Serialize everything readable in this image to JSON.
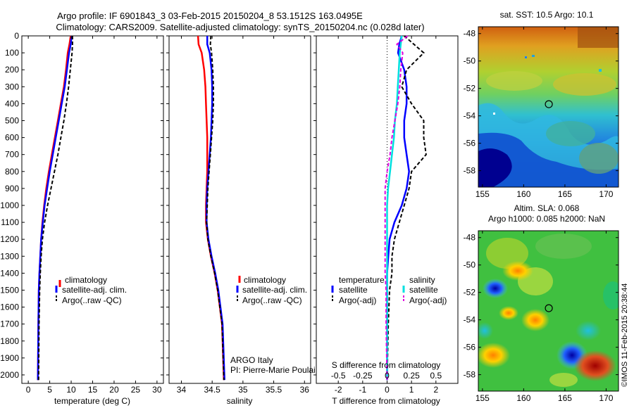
{
  "header": {
    "title_line1": "Argo profile: IF 6901843_3 03-Feb-2015 20150204_8 53.1512S 163.0495E",
    "title_line2": "Climatology: CARS2009. Satellite-adjusted climatology: synTS_20150204.nc (0.028d later)"
  },
  "credits": {
    "agency": "ARGO Italy",
    "pi": "PI: Pierre-Marie Poulain",
    "stamp": "©IMOS 11-Feb-2015 20:38:44"
  },
  "colors": {
    "climatology": "#ff0000",
    "satellite": "#0000ff",
    "argo": "#000000",
    "sal_satellite": "#00e0e0",
    "sal_argo": "#e000e0"
  },
  "chart_data": [
    {
      "type": "line",
      "id": "temperature",
      "xlabel": "temperature (deg C)",
      "ylabel": "",
      "xlim": [
        -1.5,
        31.5
      ],
      "ylim": [
        2050,
        0
      ],
      "xticks": [
        0,
        5,
        10,
        15,
        20,
        25,
        30
      ],
      "yticks": [
        0,
        100,
        200,
        300,
        400,
        500,
        600,
        700,
        800,
        900,
        1000,
        1100,
        1200,
        1300,
        1400,
        1500,
        1600,
        1700,
        1800,
        1900,
        2000
      ],
      "legend": [
        "climatology",
        "satellite-adj. clim.",
        "Argo(..raw -QC)"
      ],
      "series": [
        {
          "name": "climatology",
          "x": [
            9.9,
            9.6,
            9.2,
            8.8,
            8.3,
            7.6,
            6.9,
            6.2,
            5.5,
            4.8,
            4.2,
            3.7,
            3.3,
            3.0,
            2.8,
            2.6,
            2.45,
            2.35,
            2.25
          ],
          "y": [
            0,
            50,
            100,
            200,
            300,
            400,
            500,
            600,
            700,
            800,
            900,
            1000,
            1100,
            1200,
            1300,
            1400,
            1500,
            1700,
            2030
          ]
        },
        {
          "name": "satellite-adj. clim.",
          "x": [
            10.1,
            9.9,
            9.5,
            9.0,
            8.5,
            7.8,
            7.1,
            6.4,
            5.7,
            5.0,
            4.4,
            3.8,
            3.4,
            3.0,
            2.8,
            2.6,
            2.45,
            2.35,
            2.25
          ],
          "y": [
            0,
            50,
            100,
            200,
            300,
            400,
            500,
            600,
            700,
            800,
            900,
            1000,
            1100,
            1200,
            1300,
            1400,
            1500,
            1700,
            2030
          ]
        },
        {
          "name": "Argo(..raw -QC)",
          "x": [
            10.3,
            10.3,
            10.2,
            9.8,
            9.4,
            8.9,
            8.3,
            7.6,
            6.9,
            6.1,
            5.3,
            4.5,
            3.8,
            3.3,
            3.0,
            2.8,
            2.65,
            2.5,
            2.4
          ],
          "y": [
            0,
            50,
            100,
            200,
            300,
            400,
            500,
            600,
            700,
            800,
            900,
            1000,
            1100,
            1200,
            1300,
            1400,
            1500,
            1700,
            2030
          ]
        }
      ]
    },
    {
      "type": "line",
      "id": "salinity",
      "xlabel": "salinity",
      "ylabel": "",
      "xlim": [
        33.8,
        36.1
      ],
      "ylim": [
        2050,
        0
      ],
      "xticks": [
        34,
        34.5,
        35,
        35.5,
        36
      ],
      "legend": [
        "climatology",
        "satellite-adj. clim.",
        "Argo(..raw -QC)"
      ],
      "series": [
        {
          "name": "climatology",
          "x": [
            34.27,
            34.28,
            34.33,
            34.37,
            34.39,
            34.4,
            34.41,
            34.42,
            34.42,
            34.42,
            34.41,
            34.4,
            34.4,
            34.43,
            34.48,
            34.54,
            34.59,
            34.66,
            34.69
          ],
          "y": [
            0,
            50,
            100,
            200,
            300,
            400,
            500,
            600,
            700,
            800,
            900,
            1000,
            1100,
            1200,
            1300,
            1400,
            1500,
            1700,
            2030
          ]
        },
        {
          "name": "satellite-adj. clim.",
          "x": [
            34.42,
            34.42,
            34.46,
            34.49,
            34.5,
            34.5,
            34.49,
            34.48,
            34.46,
            34.44,
            34.42,
            34.41,
            34.41,
            34.44,
            34.49,
            34.55,
            34.6,
            34.67,
            34.7
          ],
          "y": [
            0,
            50,
            100,
            200,
            300,
            400,
            500,
            600,
            700,
            800,
            900,
            1000,
            1100,
            1200,
            1300,
            1400,
            1500,
            1700,
            2030
          ]
        },
        {
          "name": "Argo(..raw -QC)",
          "x": [
            34.48,
            34.47,
            34.49,
            34.51,
            34.52,
            34.52,
            34.51,
            34.49,
            34.47,
            34.45,
            34.43,
            34.42,
            34.41,
            34.43,
            34.48,
            34.54,
            34.59,
            34.66,
            34.69
          ],
          "y": [
            0,
            50,
            100,
            200,
            300,
            400,
            500,
            600,
            700,
            800,
            900,
            1000,
            1100,
            1200,
            1300,
            1400,
            1500,
            1700,
            2030
          ]
        }
      ]
    },
    {
      "type": "line",
      "id": "differences",
      "xlabel": "T difference from climatology",
      "xlabel_top": "S difference from climatology",
      "xlim": [
        -2.9,
        2.9
      ],
      "ylim": [
        2050,
        0
      ],
      "xticks_bottom": [
        -2,
        -1,
        0,
        1,
        2
      ],
      "xticks_top": [
        -0.5,
        -0.25,
        0,
        0.25,
        0.5
      ],
      "xticks_top_labels": [
        "-0.5",
        "-0.25",
        "0",
        "0.25",
        "0.5"
      ],
      "legend_left_title": "temperature",
      "legend_right_title": "salinity",
      "legend": [
        "satellite",
        "Argo(-adj)",
        "satellite",
        "Argo(-adj)"
      ],
      "series": [
        {
          "name": "satellite",
          "x": [
            0.6,
            0.5,
            0.45,
            0.7,
            0.8,
            0.8,
            0.7,
            0.7,
            0.8,
            0.9,
            0.8,
            0.6,
            0.3,
            0.1,
            0.05,
            0.0,
            0.0,
            0.0,
            0.0
          ],
          "y": [
            0,
            50,
            100,
            200,
            300,
            400,
            500,
            600,
            700,
            800,
            900,
            1000,
            1100,
            1200,
            1300,
            1400,
            1500,
            1700,
            2030
          ]
        },
        {
          "name": "Argo(-adj)",
          "x": [
            0.7,
            1.1,
            1.5,
            0.8,
            0.6,
            1.0,
            1.5,
            1.5,
            1.6,
            1.0,
            0.9,
            0.7,
            0.5,
            0.3,
            0.2,
            0.2,
            0.1,
            0.05,
            0.0
          ],
          "y": [
            0,
            50,
            100,
            200,
            300,
            400,
            500,
            600,
            700,
            800,
            900,
            1000,
            1100,
            1200,
            1300,
            1400,
            1500,
            1700,
            2030
          ]
        },
        {
          "name": "satellite",
          "x": [
            0.15,
            0.14,
            0.13,
            0.12,
            0.11,
            0.1,
            0.08,
            0.07,
            0.05,
            0.03,
            0.01,
            0.0,
            0.0,
            0.0,
            0.0,
            0.0,
            0.0,
            0.0,
            0.0
          ],
          "y": [
            0,
            50,
            100,
            200,
            300,
            400,
            500,
            600,
            700,
            800,
            900,
            1000,
            1100,
            1200,
            1300,
            1400,
            1500,
            1700,
            2030
          ]
        },
        {
          "name": "Argo(-adj)",
          "x": [
            0.21,
            0.1,
            0.16,
            0.14,
            0.13,
            0.11,
            0.08,
            0.05,
            0.03,
            0.0,
            -0.02,
            -0.02,
            -0.02,
            -0.02,
            -0.02,
            -0.02,
            -0.01,
            -0.01,
            0.0
          ],
          "y": [
            0,
            50,
            100,
            200,
            300,
            400,
            500,
            600,
            700,
            800,
            900,
            1000,
            1100,
            1200,
            1300,
            1400,
            1500,
            1700,
            2030
          ]
        }
      ]
    },
    {
      "type": "heatmap",
      "id": "sst-map",
      "title": "sat. SST: 10.5 Argo: 10.1",
      "xlim": [
        154.5,
        171.5
      ],
      "ylim": [
        -59.2,
        -47.5
      ],
      "xticks": [
        155,
        160,
        165,
        170
      ],
      "yticks": [
        -48,
        -50,
        -52,
        -54,
        -56,
        -58
      ],
      "float_position": {
        "lon": 163.05,
        "lat": -53.15
      }
    },
    {
      "type": "heatmap",
      "id": "sla-map",
      "title": "Altim. SLA: 0.068",
      "subtitle": "Argo h1000: 0.085 h2000: NaN",
      "xlim": [
        154.5,
        171.5
      ],
      "ylim": [
        -59.2,
        -47.5
      ],
      "xticks": [
        155,
        160,
        165,
        170
      ],
      "yticks": [
        -48,
        -50,
        -52,
        -54,
        -56,
        -58
      ],
      "float_position": {
        "lon": 163.05,
        "lat": -53.15
      }
    }
  ]
}
